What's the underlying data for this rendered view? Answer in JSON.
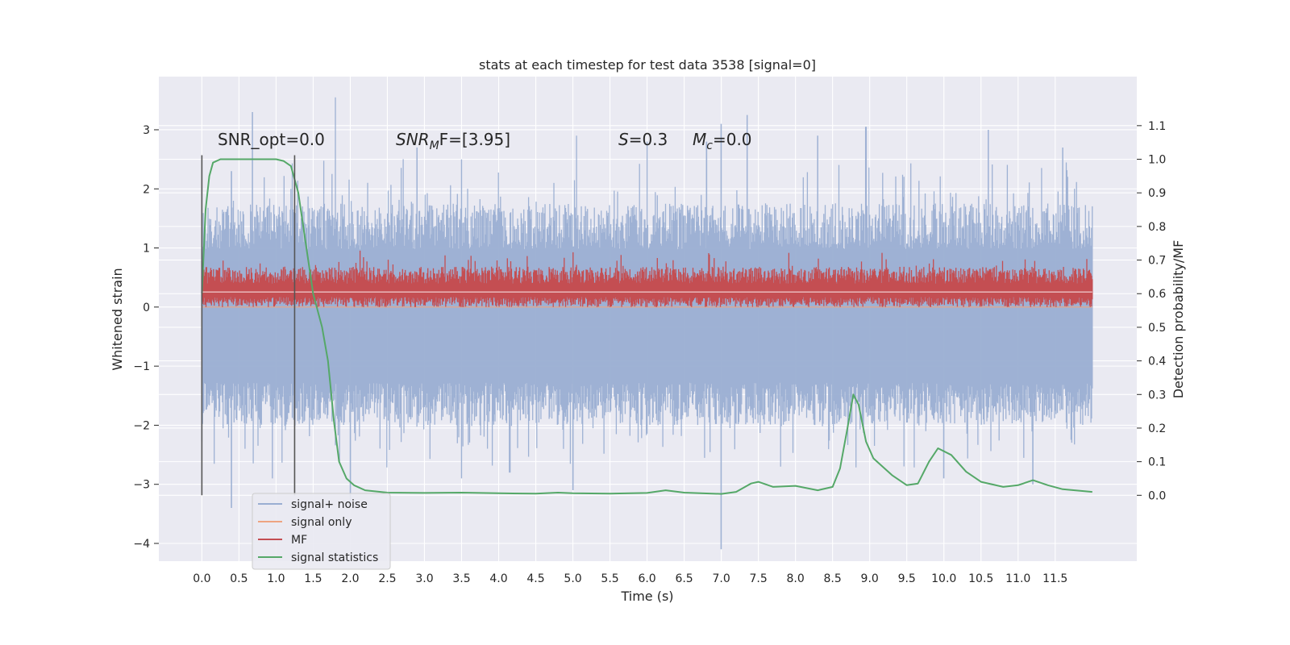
{
  "chart_data": {
    "type": "line",
    "title": "stats at each timestep for test data 3538 [signal=0]",
    "xlabel": "Time (s)",
    "ylabel": "Whitened strain",
    "y2label": "Detection probability/MF",
    "xlim": [
      -0.58,
      12.6
    ],
    "ylim": [
      -4.3,
      3.9
    ],
    "y2lim": [
      -0.196,
      1.246
    ],
    "grid": true,
    "x_ticks": [
      "0.0",
      "0.5",
      "1.0",
      "1.5",
      "2.0",
      "2.5",
      "3.0",
      "3.5",
      "4.0",
      "4.5",
      "5.0",
      "5.5",
      "6.0",
      "6.5",
      "7.0",
      "7.5",
      "8.0",
      "8.5",
      "9.0",
      "9.5",
      "10.0",
      "10.5",
      "11.0",
      "11.5"
    ],
    "y_ticks": [
      "3",
      "2",
      "1",
      "0",
      "−1",
      "−2",
      "−3",
      "−4"
    ],
    "y2_ticks": [
      "1.1",
      "1.0",
      "0.9",
      "0.8",
      "0.7",
      "0.6",
      "0.5",
      "0.4",
      "0.3",
      "0.2",
      "0.1",
      "0.0"
    ],
    "vlines": [
      0.0,
      1.25
    ],
    "annotations": {
      "snr_opt": "SNR_opt=0.0",
      "snr_mf_main": "SNR",
      "snr_mf_sub": "M",
      "snr_mf_tail": "F=[3.95]",
      "s_main": "S",
      "s_tail": "=0.3",
      "mc_main": "M",
      "mc_sub": "c",
      "mc_tail": "=0.0"
    },
    "series": [
      {
        "name": "signal+ noise",
        "color": "#9aaed2",
        "axis": "left",
        "x_range": [
          0.0,
          12.0
        ],
        "envelope": {
          "upper_typical": 1.3,
          "upper_peaks": [
            [
              0.4,
              2.3
            ],
            [
              0.68,
              3.3
            ],
            [
              1.2,
              2.0
            ],
            [
              1.8,
              3.55
            ],
            [
              2.9,
              2.7
            ],
            [
              3.5,
              2.5
            ],
            [
              5.05,
              2.9
            ],
            [
              6.0,
              2.8
            ],
            [
              6.8,
              2.8
            ],
            [
              7.0,
              3.1
            ],
            [
              7.35,
              3.25
            ],
            [
              8.3,
              2.9
            ],
            [
              8.95,
              3.05
            ],
            [
              10.6,
              3.0
            ],
            [
              11.6,
              2.7
            ]
          ],
          "lower_typical": -1.6,
          "lower_peaks": [
            [
              0.4,
              -3.4
            ],
            [
              0.95,
              -2.9
            ],
            [
              2.0,
              -3.3
            ],
            [
              3.5,
              -2.9
            ],
            [
              4.15,
              -2.8
            ],
            [
              5.0,
              -3.1
            ],
            [
              7.0,
              -4.1
            ],
            [
              7.8,
              -2.7
            ],
            [
              10.0,
              -2.9
            ],
            [
              11.2,
              -3.0
            ]
          ]
        }
      },
      {
        "name": "signal only",
        "color": "#eea481",
        "axis": "left",
        "points": [
          [
            0.0,
            0.0
          ],
          [
            12.0,
            0.0
          ]
        ]
      },
      {
        "name": "MF",
        "color": "#c44e52",
        "axis": "right",
        "x_range": [
          0.0,
          12.0
        ],
        "band": {
          "center": 0.605,
          "low": 0.56,
          "high": 0.68,
          "max": 0.73
        }
      },
      {
        "name": "signal statistics",
        "color": "#55a868",
        "axis": "right",
        "points": [
          [
            0.0,
            0.6
          ],
          [
            0.05,
            0.85
          ],
          [
            0.1,
            0.95
          ],
          [
            0.15,
            0.99
          ],
          [
            0.25,
            1.0
          ],
          [
            0.5,
            1.0
          ],
          [
            0.8,
            1.0
          ],
          [
            1.0,
            1.0
          ],
          [
            1.1,
            0.995
          ],
          [
            1.2,
            0.98
          ],
          [
            1.3,
            0.9
          ],
          [
            1.4,
            0.75
          ],
          [
            1.5,
            0.6
          ],
          [
            1.62,
            0.5
          ],
          [
            1.7,
            0.4
          ],
          [
            1.78,
            0.22
          ],
          [
            1.85,
            0.1
          ],
          [
            1.95,
            0.05
          ],
          [
            2.05,
            0.03
          ],
          [
            2.2,
            0.015
          ],
          [
            2.5,
            0.008
          ],
          [
            3.0,
            0.007
          ],
          [
            3.5,
            0.008
          ],
          [
            4.0,
            0.006
          ],
          [
            4.5,
            0.005
          ],
          [
            4.8,
            0.008
          ],
          [
            5.0,
            0.006
          ],
          [
            5.5,
            0.005
          ],
          [
            6.0,
            0.007
          ],
          [
            6.25,
            0.015
          ],
          [
            6.5,
            0.008
          ],
          [
            7.0,
            0.004
          ],
          [
            7.2,
            0.01
          ],
          [
            7.4,
            0.035
          ],
          [
            7.5,
            0.04
          ],
          [
            7.7,
            0.025
          ],
          [
            8.0,
            0.028
          ],
          [
            8.3,
            0.015
          ],
          [
            8.5,
            0.025
          ],
          [
            8.6,
            0.08
          ],
          [
            8.7,
            0.2
          ],
          [
            8.78,
            0.3
          ],
          [
            8.85,
            0.27
          ],
          [
            8.95,
            0.16
          ],
          [
            9.05,
            0.11
          ],
          [
            9.3,
            0.06
          ],
          [
            9.5,
            0.03
          ],
          [
            9.65,
            0.035
          ],
          [
            9.8,
            0.1
          ],
          [
            9.92,
            0.14
          ],
          [
            10.1,
            0.12
          ],
          [
            10.3,
            0.07
          ],
          [
            10.5,
            0.04
          ],
          [
            10.8,
            0.025
          ],
          [
            11.0,
            0.03
          ],
          [
            11.2,
            0.045
          ],
          [
            11.4,
            0.03
          ],
          [
            11.6,
            0.018
          ],
          [
            12.0,
            0.01
          ]
        ]
      }
    ]
  }
}
